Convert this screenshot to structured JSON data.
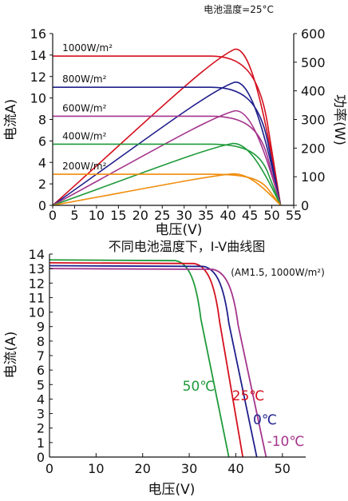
{
  "chart_data": [
    {
      "type": "line",
      "title": "",
      "annotation": "电池温度=25°C",
      "xlabel": "电压(V)",
      "ylabel": "电流A)",
      "y2label": "功率(W)",
      "xlim": [
        0,
        55
      ],
      "ylim": [
        0,
        16
      ],
      "y2lim": [
        0,
        600
      ],
      "x_ticks": [
        0,
        5,
        10,
        15,
        20,
        25,
        30,
        35,
        40,
        45,
        50,
        55
      ],
      "y_ticks": [
        0,
        2,
        4,
        6,
        8,
        10,
        12,
        14,
        16
      ],
      "y2_ticks": [
        0,
        100,
        200,
        300,
        400,
        500,
        600
      ],
      "grid": false,
      "voc": 52,
      "series": [
        {
          "name": "1000W/m²",
          "color": "#d4101e",
          "isc": 13.9,
          "pmax_v": 41.5,
          "pmax_w": 545
        },
        {
          "name": "800W/m²",
          "color": "#1f1f8c",
          "isc": 11.0,
          "pmax_v": 41.5,
          "pmax_w": 430
        },
        {
          "name": "600W/m²",
          "color": "#a4348c",
          "isc": 8.3,
          "pmax_v": 41.5,
          "pmax_w": 330
        },
        {
          "name": "400W/m²",
          "color": "#1f9a3a",
          "isc": 5.7,
          "pmax_v": 41.0,
          "pmax_w": 216
        },
        {
          "name": "200W/m²",
          "color": "#f08c0a",
          "isc": 2.9,
          "pmax_v": 41.0,
          "pmax_w": 110
        }
      ]
    },
    {
      "type": "line",
      "title": "不同电池温度下，I-V曲线图",
      "annotation": "(AM1.5, 1000W/m²)",
      "xlabel": "电压(V)",
      "ylabel": "电流(A)",
      "xlim": [
        0,
        55
      ],
      "ylim": [
        0,
        14
      ],
      "x_ticks": [
        0,
        10,
        20,
        30,
        40,
        50
      ],
      "y_ticks": [
        0,
        1,
        2,
        3,
        4,
        5,
        6,
        7,
        8,
        9,
        10,
        11,
        12,
        13,
        14
      ],
      "grid": false,
      "series": [
        {
          "name": "50℃",
          "color": "#1f9a3a",
          "isc": 13.6,
          "knee_v": 29,
          "voc": 38.5
        },
        {
          "name": "25℃",
          "color": "#d4101e",
          "isc": 13.4,
          "knee_v": 33,
          "voc": 41.5
        },
        {
          "name": "0℃",
          "color": "#1f1f8c",
          "isc": 13.2,
          "knee_v": 35,
          "voc": 44.5
        },
        {
          "name": "-10℃",
          "color": "#a4348c",
          "isc": 13.0,
          "knee_v": 37,
          "voc": 46.5
        }
      ]
    }
  ]
}
